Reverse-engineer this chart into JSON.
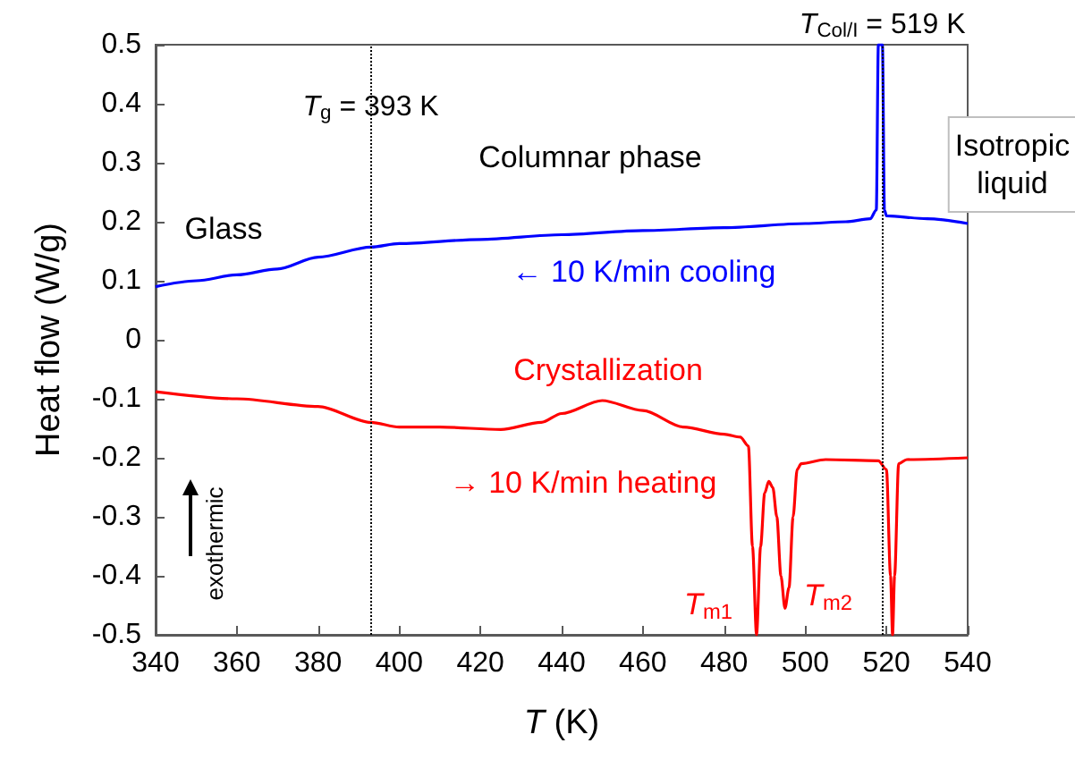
{
  "chart_data": {
    "type": "line",
    "xlabel": "T (K)",
    "ylabel": "Heat flow (W/g)",
    "xlim": [
      340,
      540
    ],
    "xticks": [
      340,
      360,
      380,
      400,
      420,
      440,
      460,
      480,
      500,
      520,
      540
    ],
    "ylim": [
      -0.5,
      0.5
    ],
    "yticks": [
      -0.5,
      -0.4,
      -0.3,
      -0.2,
      -0.1,
      0,
      0.1,
      0.2,
      0.3,
      0.4,
      0.5
    ],
    "grid": false,
    "line_style": "solid",
    "marker": "none",
    "series": [
      {
        "color": "#0000ff",
        "x": [
          340,
          350,
          360,
          370,
          380,
          393,
          400,
          420,
          440,
          460,
          480,
          500,
          510,
          516,
          517.5,
          518,
          518.5,
          519,
          519.5,
          520,
          530,
          540
        ],
        "values": [
          0.09,
          0.1,
          0.11,
          0.12,
          0.14,
          0.157,
          0.163,
          0.17,
          0.178,
          0.185,
          0.19,
          0.197,
          0.2,
          0.205,
          0.22,
          0.5,
          0.5,
          0.5,
          0.22,
          0.21,
          0.205,
          0.197
        ]
      },
      {
        "color": "#ff0000",
        "x": [
          340,
          360,
          380,
          393,
          400,
          410,
          425,
          435,
          440,
          450,
          460,
          470,
          480,
          484,
          486,
          487,
          488,
          489,
          490,
          491,
          492,
          493,
          494,
          495,
          496,
          497,
          498,
          499,
          505,
          518,
          520,
          521,
          521.5,
          522,
          523,
          525,
          540
        ],
        "values": [
          -0.088,
          -0.1,
          -0.113,
          -0.14,
          -0.148,
          -0.148,
          -0.152,
          -0.14,
          -0.125,
          -0.103,
          -0.12,
          -0.148,
          -0.16,
          -0.165,
          -0.18,
          -0.35,
          -0.5,
          -0.35,
          -0.26,
          -0.24,
          -0.25,
          -0.3,
          -0.4,
          -0.455,
          -0.42,
          -0.3,
          -0.22,
          -0.21,
          -0.203,
          -0.205,
          -0.22,
          -0.4,
          -0.5,
          -0.4,
          -0.21,
          -0.203,
          -0.2
        ]
      }
    ],
    "ref_lines": [
      {
        "axis": "x",
        "value": 393,
        "label": "T$_{g}$ = 393 K",
        "line_style": "dotted",
        "color": "#000000"
      },
      {
        "axis": "x",
        "value": 519,
        "label": "T$_{Col/I}$ = 519 K",
        "line_style": "dotted",
        "color": "#000000"
      }
    ],
    "annotations": [
      "Glass",
      "Columnar phase",
      "Isotropic\nliquid",
      "← 10 K/min cooling",
      "Crystallization",
      "→ 10 K/min heating",
      "T$_{m1}$",
      "T$_{m2}$",
      "exothermic"
    ]
  }
}
